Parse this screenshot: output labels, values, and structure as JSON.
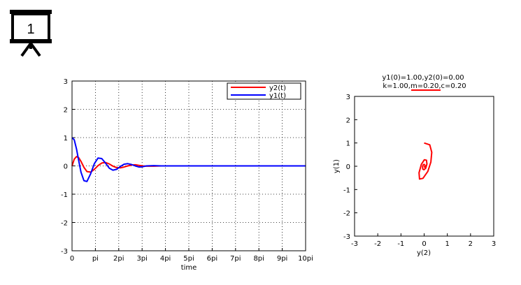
{
  "slide_icon": {
    "name": "projector-screen-icon",
    "number": "1"
  },
  "colors": {
    "y2": "#ff0000",
    "y1": "#0000ff",
    "grid": "#000000",
    "frame": "#000000"
  },
  "chart_data": [
    {
      "type": "line",
      "xlabel": "time",
      "ylabel": "",
      "xlim": [
        0,
        31.416
      ],
      "ylim": [
        -3,
        3
      ],
      "grid": true,
      "legend_position": "top-right",
      "x_ticks": [
        {
          "value": 0,
          "label": "0"
        },
        {
          "value": 3.1416,
          "label": "pi"
        },
        {
          "value": 6.2832,
          "label": "2pi"
        },
        {
          "value": 9.4248,
          "label": "3pi"
        },
        {
          "value": 12.566,
          "label": "4pi"
        },
        {
          "value": 15.708,
          "label": "5pi"
        },
        {
          "value": 18.85,
          "label": "6pi"
        },
        {
          "value": 21.991,
          "label": "7pi"
        },
        {
          "value": 25.133,
          "label": "8pi"
        },
        {
          "value": 28.274,
          "label": "9pi"
        },
        {
          "value": 31.416,
          "label": "10pi"
        }
      ],
      "y_ticks": [
        {
          "value": 3,
          "label": "3"
        },
        {
          "value": 2,
          "label": "2"
        },
        {
          "value": 1,
          "label": "1"
        },
        {
          "value": 0,
          "label": "0"
        },
        {
          "value": -1,
          "label": "-1"
        },
        {
          "value": -2,
          "label": "-2"
        },
        {
          "value": -3,
          "label": "-3"
        }
      ],
      "series": [
        {
          "name": "y2(t)",
          "color": "#ff0000",
          "x": [
            0,
            0.3,
            0.6,
            0.9,
            1.2,
            1.6,
            2.0,
            2.5,
            3.0,
            3.5,
            4.0,
            4.5,
            5.0,
            5.5,
            6.0,
            6.5,
            7.0,
            7.5,
            8.0,
            8.5,
            9.0,
            9.5,
            10.0,
            11.0,
            12.0,
            14.0,
            17.0,
            20.0,
            25.0,
            31.416
          ],
          "y": [
            0,
            0.24,
            0.33,
            0.29,
            0.16,
            -0.05,
            -0.2,
            -0.22,
            -0.12,
            0.01,
            0.1,
            0.12,
            0.07,
            -0.01,
            -0.06,
            -0.07,
            -0.04,
            0.0,
            0.03,
            0.04,
            0.02,
            0.0,
            -0.01,
            -0.01,
            0.0,
            0.0,
            0.0,
            0.0,
            0.0,
            0.0
          ]
        },
        {
          "name": "y1(t)",
          "color": "#0000ff",
          "x": [
            0,
            0.3,
            0.6,
            0.9,
            1.2,
            1.6,
            2.0,
            2.5,
            3.0,
            3.5,
            4.0,
            4.5,
            5.0,
            5.5,
            6.0,
            6.5,
            7.0,
            7.5,
            8.0,
            8.5,
            9.0,
            9.5,
            10.0,
            11.0,
            12.0,
            14.0,
            17.0,
            20.0,
            25.0,
            31.416
          ],
          "y": [
            1.0,
            0.92,
            0.6,
            0.18,
            -0.22,
            -0.52,
            -0.55,
            -0.28,
            0.08,
            0.28,
            0.26,
            0.1,
            -0.08,
            -0.15,
            -0.12,
            -0.02,
            0.06,
            0.08,
            0.05,
            0.0,
            -0.04,
            -0.03,
            0.0,
            0.01,
            0.0,
            0.0,
            0.0,
            0.0,
            0.0,
            0.0
          ]
        }
      ]
    },
    {
      "type": "line",
      "title": "y1(0)=1.00,y2(0)=0.00",
      "subtitle_parts": [
        {
          "text": "k=1.00,",
          "highlight": false
        },
        {
          "text": "m=0.20",
          "highlight": true
        },
        {
          "text": ",c=0.20",
          "highlight": false
        }
      ],
      "highlight_color": "#ff0000",
      "xlabel": "y(2)",
      "ylabel": "y(1)",
      "xlim": [
        -3,
        3
      ],
      "ylim": [
        -3,
        3
      ],
      "grid": false,
      "x_ticks": [
        {
          "value": -3,
          "label": "-3"
        },
        {
          "value": -2,
          "label": "-2"
        },
        {
          "value": -1,
          "label": "-1"
        },
        {
          "value": 0,
          "label": "0"
        },
        {
          "value": 1,
          "label": "1"
        },
        {
          "value": 2,
          "label": "2"
        },
        {
          "value": 3,
          "label": "3"
        }
      ],
      "y_ticks": [
        {
          "value": 3,
          "label": "3"
        },
        {
          "value": 2,
          "label": "2"
        },
        {
          "value": 1,
          "label": "1"
        },
        {
          "value": 0,
          "label": "0"
        },
        {
          "value": -1,
          "label": "-1"
        },
        {
          "value": -2,
          "label": "-2"
        },
        {
          "value": -3,
          "label": "-3"
        }
      ],
      "series": [
        {
          "color": "#ff0000",
          "x": [
            0.0,
            0.24,
            0.33,
            0.29,
            0.16,
            -0.05,
            -0.2,
            -0.22,
            -0.12,
            0.01,
            0.1,
            0.12,
            0.07,
            -0.01,
            -0.06,
            -0.07,
            -0.04,
            0.0,
            0.03,
            0.04,
            0.02,
            0.0
          ],
          "y": [
            1.0,
            0.92,
            0.6,
            0.18,
            -0.22,
            -0.52,
            -0.55,
            -0.28,
            0.08,
            0.28,
            0.26,
            0.1,
            -0.08,
            -0.15,
            -0.12,
            -0.02,
            0.06,
            0.08,
            0.05,
            0.0,
            -0.04,
            0.0
          ]
        }
      ]
    }
  ]
}
